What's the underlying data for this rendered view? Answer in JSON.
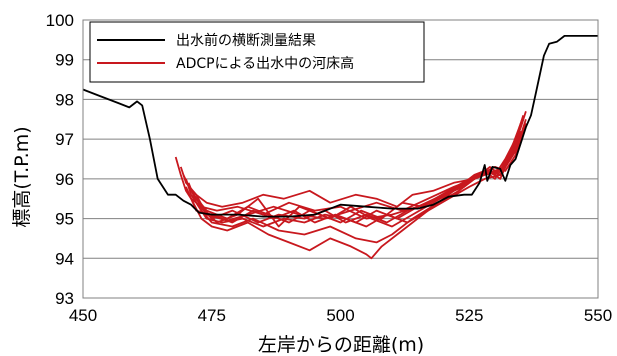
{
  "chart_data": {
    "type": "line",
    "xlabel": "左岸からの距離(m)",
    "ylabel": "標高(T.P.m)",
    "xlim": [
      450,
      550
    ],
    "ylim": [
      93,
      100
    ],
    "xticks": [
      "450",
      "475",
      "500",
      "525",
      "550"
    ],
    "yticks": [
      "93",
      "94",
      "95",
      "96",
      "97",
      "98",
      "99",
      "100"
    ],
    "grid": "horizontal",
    "legend_position": "top-left",
    "series": [
      {
        "name": "出水前の横断測量結果",
        "color": "#000000",
        "points": [
          [
            450,
            98.25
          ],
          [
            453,
            98.1
          ],
          [
            457,
            97.9
          ],
          [
            459,
            97.8
          ],
          [
            460.5,
            97.95
          ],
          [
            461.5,
            97.85
          ],
          [
            463,
            97.0
          ],
          [
            464.5,
            96.0
          ],
          [
            466.5,
            95.6
          ],
          [
            468,
            95.6
          ],
          [
            469.5,
            95.45
          ],
          [
            471,
            95.35
          ],
          [
            472.5,
            95.15
          ],
          [
            475,
            95.1
          ],
          [
            480,
            95.1
          ],
          [
            485,
            95.05
          ],
          [
            490,
            95.05
          ],
          [
            495,
            95.1
          ],
          [
            500,
            95.35
          ],
          [
            505,
            95.3
          ],
          [
            510,
            95.25
          ],
          [
            515,
            95.25
          ],
          [
            518,
            95.35
          ],
          [
            521,
            95.55
          ],
          [
            524,
            95.6
          ],
          [
            525.5,
            95.6
          ],
          [
            527,
            95.9
          ],
          [
            528,
            96.35
          ],
          [
            528.5,
            95.95
          ],
          [
            529.5,
            96.3
          ],
          [
            531,
            96.25
          ],
          [
            532,
            95.95
          ],
          [
            533,
            96.35
          ],
          [
            534,
            96.5
          ],
          [
            535,
            96.9
          ],
          [
            536,
            97.3
          ],
          [
            537,
            97.6
          ],
          [
            538,
            98.2
          ],
          [
            539.5,
            99.1
          ],
          [
            540.5,
            99.4
          ],
          [
            542,
            99.45
          ],
          [
            543.5,
            99.6
          ],
          [
            550,
            99.6
          ]
        ]
      },
      {
        "name": "ADCPによる出水中の河床高",
        "color": "#c8181e",
        "passes": [
          [
            [
              468,
              96.55
            ],
            [
              469,
              96.1
            ],
            [
              470,
              95.7
            ],
            [
              471,
              95.5
            ],
            [
              473,
              95.3
            ],
            [
              476,
              95.2
            ],
            [
              480,
              95.3
            ],
            [
              485,
              95.1
            ],
            [
              490,
              95.4
            ],
            [
              495,
              95.2
            ],
            [
              500,
              95.3
            ],
            [
              505,
              95.0
            ],
            [
              510,
              95.1
            ],
            [
              515,
              95.3
            ],
            [
              520,
              95.6
            ],
            [
              524,
              95.9
            ],
            [
              526,
              96.1
            ],
            [
              528,
              96.2
            ],
            [
              530,
              96.1
            ],
            [
              532,
              96.5
            ],
            [
              534,
              97.0
            ],
            [
              535.5,
              97.6
            ]
          ],
          [
            [
              469,
              96.3
            ],
            [
              470,
              95.9
            ],
            [
              472,
              95.6
            ],
            [
              474,
              95.1
            ],
            [
              478,
              94.95
            ],
            [
              482,
              95.1
            ],
            [
              487,
              95.3
            ],
            [
              492,
              95.1
            ],
            [
              497,
              95.0
            ],
            [
              502,
              95.2
            ],
            [
              507,
              95.4
            ],
            [
              512,
              95.2
            ],
            [
              517,
              95.5
            ],
            [
              522,
              95.8
            ],
            [
              526,
              96.0
            ],
            [
              529,
              96.2
            ],
            [
              531,
              96.0
            ],
            [
              533,
              96.6
            ],
            [
              535,
              97.3
            ],
            [
              536,
              97.7
            ]
          ],
          [
            [
              470,
              96.0
            ],
            [
              471,
              95.6
            ],
            [
              473,
              95.2
            ],
            [
              475,
              94.9
            ],
            [
              479,
              94.8
            ],
            [
              483,
              95.0
            ],
            [
              488,
              94.7
            ],
            [
              493,
              94.6
            ],
            [
              498,
              94.8
            ],
            [
              503,
              94.5
            ],
            [
              507,
              94.4
            ],
            [
              510,
              94.6
            ],
            [
              514,
              95.0
            ],
            [
              519,
              95.4
            ],
            [
              523,
              95.7
            ],
            [
              527,
              96.1
            ],
            [
              530,
              96.2
            ],
            [
              532,
              96.3
            ],
            [
              534,
              96.8
            ],
            [
              535,
              97.2
            ]
          ],
          [
            [
              471,
              95.5
            ],
            [
              473,
              95.0
            ],
            [
              475,
              94.8
            ],
            [
              478,
              94.7
            ],
            [
              482,
              94.9
            ],
            [
              486,
              94.6
            ],
            [
              490,
              94.4
            ],
            [
              494,
              94.2
            ],
            [
              498,
              94.5
            ],
            [
              502,
              94.3
            ],
            [
              505,
              94.1
            ],
            [
              506,
              94.0
            ],
            [
              508,
              94.3
            ],
            [
              512,
              94.7
            ],
            [
              516,
              95.1
            ],
            [
              520,
              95.5
            ],
            [
              524,
              95.9
            ],
            [
              528,
              96.1
            ],
            [
              531,
              96.2
            ],
            [
              533,
              96.7
            ],
            [
              535,
              97.4
            ]
          ],
          [
            [
              469.5,
              96.1
            ],
            [
              471,
              95.7
            ],
            [
              474,
              95.4
            ],
            [
              477,
              95.3
            ],
            [
              481,
              95.4
            ],
            [
              485,
              95.6
            ],
            [
              489,
              95.5
            ],
            [
              494,
              95.7
            ],
            [
              498,
              95.4
            ],
            [
              503,
              95.6
            ],
            [
              507,
              95.5
            ],
            [
              511,
              95.3
            ],
            [
              514,
              95.6
            ],
            [
              518,
              95.7
            ],
            [
              522,
              95.9
            ],
            [
              526,
              96.0
            ],
            [
              529,
              96.3
            ],
            [
              531,
              96.1
            ],
            [
              533,
              96.5
            ],
            [
              535,
              97.1
            ],
            [
              536,
              97.5
            ]
          ],
          [
            [
              470.5,
              95.9
            ],
            [
              472,
              95.4
            ],
            [
              475,
              95.0
            ],
            [
              479,
              95.2
            ],
            [
              484,
              94.9
            ],
            [
              488,
              95.1
            ],
            [
              493,
              95.0
            ],
            [
              497,
              95.2
            ],
            [
              501,
              94.9
            ],
            [
              505,
              95.1
            ],
            [
              509,
              94.9
            ],
            [
              513,
              95.2
            ],
            [
              517,
              95.4
            ],
            [
              521,
              95.7
            ],
            [
              525,
              96.0
            ],
            [
              528,
              96.2
            ],
            [
              530,
              96.0
            ],
            [
              532,
              96.4
            ],
            [
              534,
              96.9
            ],
            [
              535.5,
              97.5
            ]
          ],
          [
            [
              471,
              95.7
            ],
            [
              473,
              95.3
            ],
            [
              476,
              94.9
            ],
            [
              480,
              95.1
            ],
            [
              484,
              95.5
            ],
            [
              488,
              94.8
            ],
            [
              492,
              95.3
            ],
            [
              496,
              95.1
            ],
            [
              500,
              94.9
            ],
            [
              504,
              95.2
            ],
            [
              508,
              95.0
            ],
            [
              512,
              95.4
            ],
            [
              516,
              95.3
            ],
            [
              520,
              95.6
            ],
            [
              524,
              95.8
            ],
            [
              527,
              96.1
            ],
            [
              530,
              96.2
            ],
            [
              532,
              96.3
            ],
            [
              534,
              96.7
            ],
            [
              535,
              97.0
            ]
          ],
          [
            [
              472,
              95.4
            ],
            [
              474,
              95.0
            ],
            [
              477,
              94.9
            ],
            [
              481,
              95.0
            ],
            [
              485,
              94.8
            ],
            [
              489,
              95.0
            ],
            [
              493,
              94.9
            ],
            [
              497,
              95.1
            ],
            [
              501,
              95.0
            ],
            [
              505,
              94.8
            ],
            [
              509,
              95.1
            ],
            [
              513,
              94.9
            ],
            [
              517,
              95.2
            ],
            [
              521,
              95.5
            ],
            [
              525,
              95.8
            ],
            [
              528,
              96.0
            ],
            [
              531,
              96.1
            ],
            [
              533,
              96.5
            ],
            [
              535,
              97.1
            ]
          ],
          [
            [
              470,
              95.8
            ],
            [
              472,
              95.2
            ],
            [
              475,
              95.1
            ],
            [
              479,
              94.9
            ],
            [
              483,
              95.2
            ],
            [
              487,
              95.0
            ],
            [
              491,
              95.2
            ],
            [
              495,
              94.9
            ],
            [
              499,
              95.1
            ],
            [
              503,
              94.9
            ],
            [
              507,
              95.2
            ],
            [
              511,
              95.0
            ],
            [
              515,
              95.3
            ],
            [
              519,
              95.5
            ],
            [
              523,
              95.8
            ],
            [
              527,
              96.1
            ],
            [
              530,
              96.3
            ],
            [
              532,
              96.2
            ],
            [
              534,
              96.6
            ],
            [
              536,
              97.4
            ]
          ],
          [
            [
              471.5,
              95.6
            ],
            [
              474,
              95.2
            ],
            [
              478,
              95.0
            ],
            [
              482,
              95.3
            ],
            [
              486,
              95.1
            ],
            [
              490,
              94.9
            ],
            [
              494,
              95.2
            ],
            [
              498,
              95.0
            ],
            [
              502,
              95.3
            ],
            [
              506,
              95.0
            ],
            [
              510,
              94.8
            ],
            [
              514,
              95.1
            ],
            [
              518,
              95.4
            ],
            [
              522,
              95.7
            ],
            [
              526,
              96.0
            ],
            [
              529,
              96.2
            ],
            [
              531,
              96.1
            ],
            [
              533,
              96.6
            ],
            [
              535,
              97.2
            ]
          ]
        ]
      }
    ]
  }
}
